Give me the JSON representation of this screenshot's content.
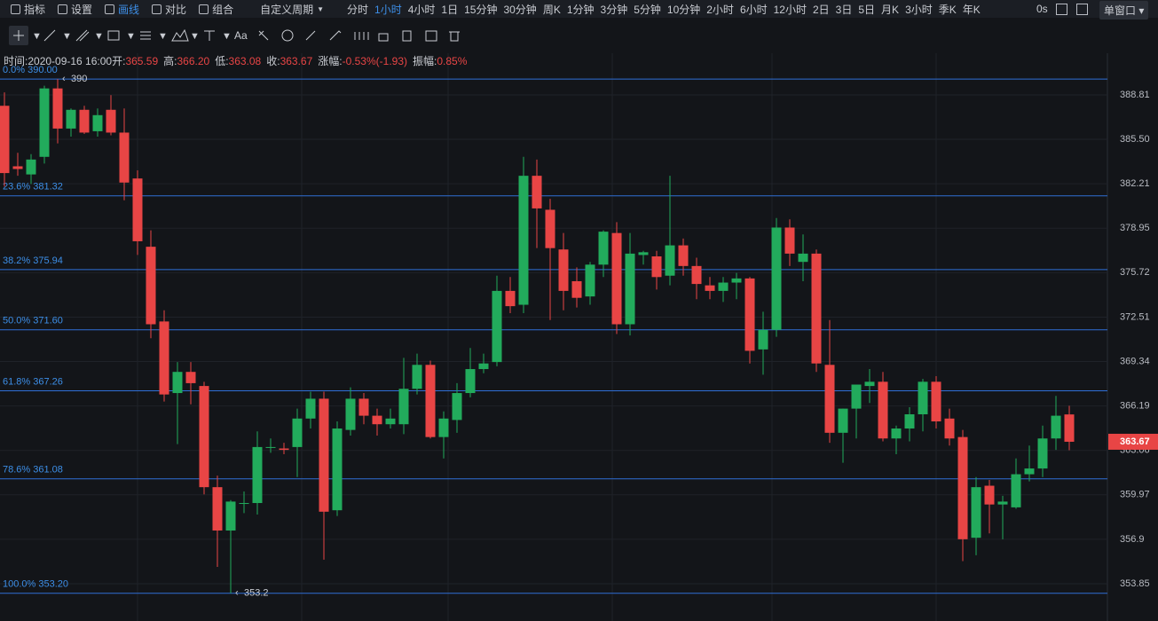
{
  "toolbar": {
    "menu": [
      "指标",
      "设置",
      "画线",
      "对比",
      "组合"
    ],
    "period_menu": "自定义周期",
    "periods": [
      "分时",
      "1小时",
      "4小时",
      "1日",
      "15分钟",
      "30分钟",
      "周K",
      "1分钟",
      "3分钟",
      "5分钟",
      "10分钟",
      "2小时",
      "6小时",
      "12小时",
      "2日",
      "3日",
      "5日",
      "月K",
      "3小时",
      "季K",
      "年K"
    ],
    "active_period": 1,
    "timer": "0s",
    "window_button": "单窗口",
    "text_tool": "Aa"
  },
  "info": [
    {
      "label": "时间:",
      "value": "2020-09-16 16:00"
    },
    {
      "label": "开:",
      "value": "365.59"
    },
    {
      "label": "高:",
      "value": "366.20"
    },
    {
      "label": "低:",
      "value": "363.08"
    },
    {
      "label": "收:",
      "value": "363.67"
    },
    {
      "label": "涨幅:",
      "value": "-0.53%(-1.93)"
    },
    {
      "label": "振幅:",
      "value": "0.85%"
    }
  ],
  "chart_data": {
    "type": "candlestick",
    "log_scale": true,
    "grid": true,
    "up_color": "#22ab5c",
    "down_color": "#e84545",
    "ylim": [
      351.32,
      391.95
    ],
    "yticks": [
      {
        "value": 353.85,
        "label": "353.85"
      },
      356.9,
      {
        "value": 359.97,
        "label": "359.97"
      },
      363.06,
      {
        "value": 366.19,
        "label": "366.19"
      },
      369.34,
      {
        "value": 372.51,
        "label": "372.51"
      },
      375.72,
      {
        "value": 378.95,
        "label": "378.95"
      },
      382.21,
      {
        "value": 385.5,
        "label": "385.50"
      },
      388.81
    ],
    "open": [
      388,
      383.5,
      382.9,
      384.2,
      389.3,
      386.3,
      387.7,
      386.1,
      387.7,
      386,
      382.6,
      377.6,
      372.2,
      367.1,
      368.6,
      367.6,
      360.5,
      357.5,
      359.4,
      359.4,
      363.3,
      363.2,
      363.3,
      365.3,
      366.7,
      358.9,
      364.5,
      366.7,
      365.5,
      364.9,
      364.9,
      367.4,
      369.1,
      364,
      365.2,
      367.1,
      368.8,
      369.3,
      374.4,
      373.4,
      382.8,
      380.3,
      377.4,
      375.1,
      374,
      376.3,
      378.6,
      372,
      377,
      376.9,
      375.5,
      377.7,
      376.2,
      374.8,
      374.4,
      375,
      375.3,
      370.2,
      371.6,
      379,
      376.5,
      377.1,
      369.1,
      364.3,
      366,
      367.6,
      367.9,
      363.9,
      364.6,
      365.6,
      367.9,
      365.3,
      364,
      357,
      360.6,
      359.3,
      359.1,
      361.4,
      361.8,
      363.9,
      365.59
    ],
    "high": [
      389,
      384.5,
      384.4,
      389.5,
      390,
      387.8,
      388,
      387.8,
      388.8,
      387.8,
      383.2,
      378.8,
      373,
      369.3,
      369.3,
      367.9,
      361.3,
      359.6,
      360.2,
      364.4,
      363.9,
      363.6,
      366,
      367.2,
      367.2,
      365.1,
      367.5,
      367.1,
      366,
      366,
      369.6,
      369.9,
      369.4,
      365.8,
      367.8,
      370.3,
      369.9,
      375.5,
      375.4,
      384.2,
      384,
      381.1,
      378.6,
      376.1,
      376.5,
      378.8,
      379.4,
      378.6,
      377.3,
      377.3,
      382.8,
      378.2,
      376.8,
      375.4,
      375.4,
      375.7,
      375.4,
      372.9,
      379.7,
      379.6,
      378.5,
      377.4,
      372.3,
      366,
      367.5,
      368.8,
      368.6,
      364.8,
      366.1,
      368.1,
      368.3,
      366,
      364.5,
      361.2,
      361,
      359.9,
      362.5,
      363.4,
      364.8,
      366.9,
      366.2
    ],
    "low": [
      382,
      382.8,
      382.2,
      383.7,
      385.2,
      385.7,
      385.9,
      385.7,
      385.8,
      381,
      377,
      371,
      366.5,
      363.5,
      366.3,
      360,
      355,
      353.2,
      358.7,
      358.6,
      362.9,
      362.8,
      361.2,
      364.6,
      355.5,
      358.5,
      364.1,
      364.9,
      364.1,
      364.6,
      364.2,
      367,
      363.9,
      362.5,
      364.3,
      366.8,
      368.5,
      369,
      372.8,
      372.8,
      377.5,
      372.3,
      373,
      373.2,
      373.4,
      375.4,
      371.3,
      371.2,
      376.3,
      374.5,
      374.8,
      375.5,
      373.8,
      373.8,
      373.6,
      373.8,
      369.2,
      368.4,
      371.1,
      376.2,
      375.1,
      368.6,
      363.6,
      362.2,
      363.9,
      366.4,
      363.7,
      362.8,
      363.7,
      364.4,
      364.6,
      363.4,
      355.4,
      355.8,
      357.3,
      356.9,
      359,
      360.9,
      361.2,
      363.1,
      363.08
    ],
    "close": [
      383,
      383.3,
      384,
      389.3,
      386.3,
      387.7,
      386,
      387.3,
      386,
      382.3,
      378,
      372,
      367,
      368.6,
      367.8,
      360.5,
      357.5,
      359.5,
      359.4,
      363.3,
      363.3,
      363.1,
      365.3,
      366.7,
      358.8,
      364.6,
      366.7,
      365.5,
      364.9,
      365.3,
      367.4,
      369.1,
      364,
      365.3,
      367.1,
      368.8,
      369.2,
      374.4,
      373.3,
      382.8,
      380.4,
      377.5,
      374.4,
      373.9,
      376.3,
      378.7,
      372,
      377.1,
      377.2,
      375.4,
      377.7,
      376.2,
      374.9,
      374.4,
      375,
      375.3,
      370.1,
      371.6,
      379,
      377.1,
      377.1,
      369.2,
      364.3,
      366,
      367.7,
      367.9,
      363.9,
      364.6,
      365.6,
      367.9,
      365.1,
      363.9,
      356.9,
      360.5,
      359.3,
      359.5,
      361.4,
      361.8,
      363.9,
      365.5,
      363.67
    ],
    "fib_levels": [
      {
        "value": 390,
        "label": "0.0% 390.00"
      },
      {
        "value": 381.32,
        "label": "23.6% 381.32"
      },
      {
        "value": 375.94,
        "label": "38.2% 375.94"
      },
      {
        "value": 371.6,
        "label": "50.0% 371.60"
      },
      {
        "value": 367.26,
        "label": "61.8% 367.26"
      },
      {
        "value": 361.08,
        "label": "78.6% 361.08"
      },
      {
        "value": 353.2,
        "label": "100.0% 353.20"
      }
    ],
    "annotations": [
      {
        "value": 390,
        "label": "390",
        "index": 4
      },
      {
        "value": 353.2,
        "label": "353.2",
        "index": 17
      }
    ],
    "last_price": 363.67
  }
}
